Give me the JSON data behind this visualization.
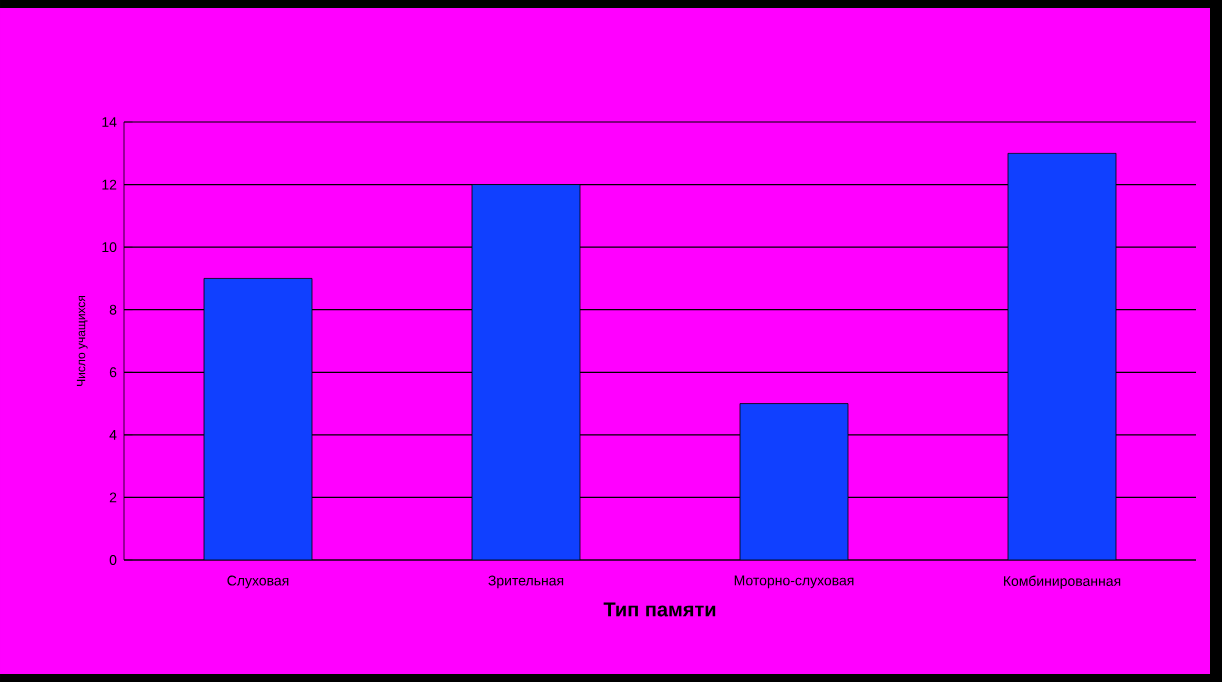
{
  "chart_data": {
    "type": "bar",
    "xlabel": "Тип памяти",
    "ylabel": "Число учащихся",
    "categories": [
      "Слуховая",
      "Зрительная",
      "Моторно-слуховая",
      "Комбинированная"
    ],
    "values": [
      9,
      12,
      5,
      13
    ],
    "color": "#1040ff",
    "ylim": [
      0,
      14
    ],
    "yticks": [
      0,
      2,
      4,
      6,
      8,
      10,
      12,
      14
    ],
    "grid": "y"
  }
}
